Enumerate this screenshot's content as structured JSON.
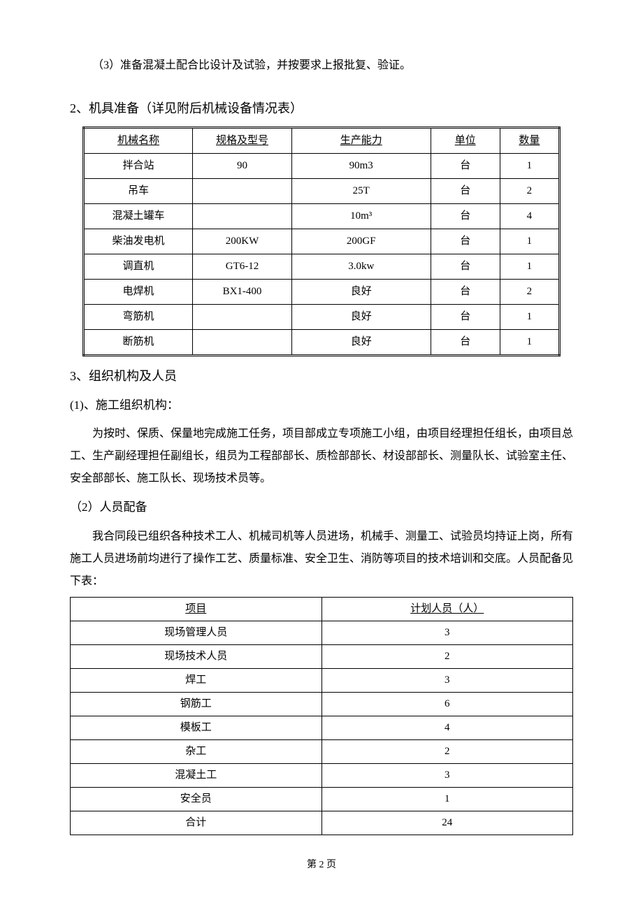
{
  "intro_para": "（3）准备混凝土配合比设计及试验，并按要求上报批复、验证。",
  "section2_heading": "2、机具准备（详见附后机械设备情况表）",
  "equipment_table": {
    "type": "table",
    "columns": [
      "机械名称",
      "规格及型号",
      "生产能力",
      "单位",
      "数量"
    ],
    "rows": [
      [
        "拌合站",
        "90",
        "90m3",
        "台",
        "1"
      ],
      [
        "吊车",
        "",
        "25T",
        "台",
        "2"
      ],
      [
        "混凝土罐车",
        "",
        "10m³",
        "台",
        "4"
      ],
      [
        "柴油发电机",
        "200KW",
        "200GF",
        "台",
        "1"
      ],
      [
        "调直机",
        "GT6-12",
        "3.0kw",
        "台",
        "1"
      ],
      [
        "电焊机",
        "BX1-400",
        "良好",
        "台",
        "2"
      ],
      [
        "弯筋机",
        "",
        "良好",
        "台",
        "1"
      ],
      [
        "断筋机",
        "",
        "良好",
        "台",
        "1"
      ]
    ],
    "col_widths_pct": [
      22,
      20,
      28,
      14,
      12
    ],
    "border_style": "double",
    "header_underline": true,
    "background_color": "#ffffff",
    "border_color": "#000000",
    "text_color": "#000000",
    "font_size_pt": 11
  },
  "section3_heading": "3、组织机构及人员",
  "sub3_1_heading": "(1)、施工组织机构：",
  "sub3_1_body": "为按时、保质、保量地完成施工任务，项目部成立专项施工小组，由项目经理担任组长，由项目总工、生产副经理担任副组长，组员为工程部部长、质检部部长、材设部部长、测量队长、试验室主任、安全部部长、施工队长、现场技术员等。",
  "sub3_2_heading": "（2）人员配备",
  "sub3_2_body": "我合同段已组织各种技术工人、机械司机等人员进场，机械手、测量工、试验员均持证上岗，所有施工人员进场前均进行了操作工艺、质量标准、安全卫生、消防等项目的技术培训和交底。人员配备见下表：",
  "personnel_table": {
    "type": "table",
    "columns": [
      "项目",
      "计划人员（人）"
    ],
    "rows": [
      [
        "现场管理人员",
        "3"
      ],
      [
        "现场技术人员",
        "2"
      ],
      [
        "焊工",
        "3"
      ],
      [
        "钢筋工",
        "6"
      ],
      [
        "模板工",
        "4"
      ],
      [
        "杂工",
        "2"
      ],
      [
        "混凝土工",
        "3"
      ],
      [
        "安全员",
        "1"
      ],
      [
        "合计",
        "24"
      ]
    ],
    "col_widths_pct": [
      50,
      50
    ],
    "border_style": "single",
    "header_underline": true,
    "background_color": "#ffffff",
    "border_color": "#000000",
    "text_color": "#000000",
    "font_size_pt": 11
  },
  "footer": "第 2 页"
}
